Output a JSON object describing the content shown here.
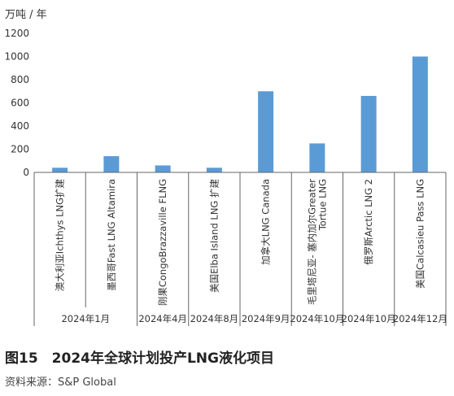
{
  "caption": "图15　2024年全球计划投产LNG液化项目",
  "source": "资料来源：S&P Global",
  "chart_data": {
    "type": "bar",
    "ylabel": "万吨 / 年",
    "ylim": [
      0,
      1200
    ],
    "yticks": [
      0,
      200,
      400,
      600,
      800,
      1000,
      1200
    ],
    "grid": false,
    "bar_color": "#5B9BD5",
    "categories": [
      "澳大利亚Ichthys LNG扩建",
      "墨西哥Fast LNG Altamira",
      "刚果CongoBrazzaville FLNG",
      "美国Elba Island LNG 扩建",
      "加拿大LNG Canada",
      "毛里塔尼亚- 塞内加尔Greater Tortue LNG",
      "俄罗斯Arctic LNG 2",
      "美国Calcasieu Pass LNG"
    ],
    "values": [
      40,
      140,
      60,
      40,
      700,
      250,
      660,
      1000
    ],
    "groups": [
      {
        "label": "2024年1月",
        "categories": [
          0,
          1
        ]
      },
      {
        "label": "2024年4月",
        "categories": [
          2
        ]
      },
      {
        "label": "2024年8月",
        "categories": [
          3
        ]
      },
      {
        "label": "2024年9月",
        "categories": [
          4
        ]
      },
      {
        "label": "2024年10月",
        "categories": [
          5
        ]
      },
      {
        "label": "2024年10月",
        "categories": [
          6
        ]
      },
      {
        "label": "2024年12月",
        "categories": [
          7
        ]
      }
    ]
  }
}
